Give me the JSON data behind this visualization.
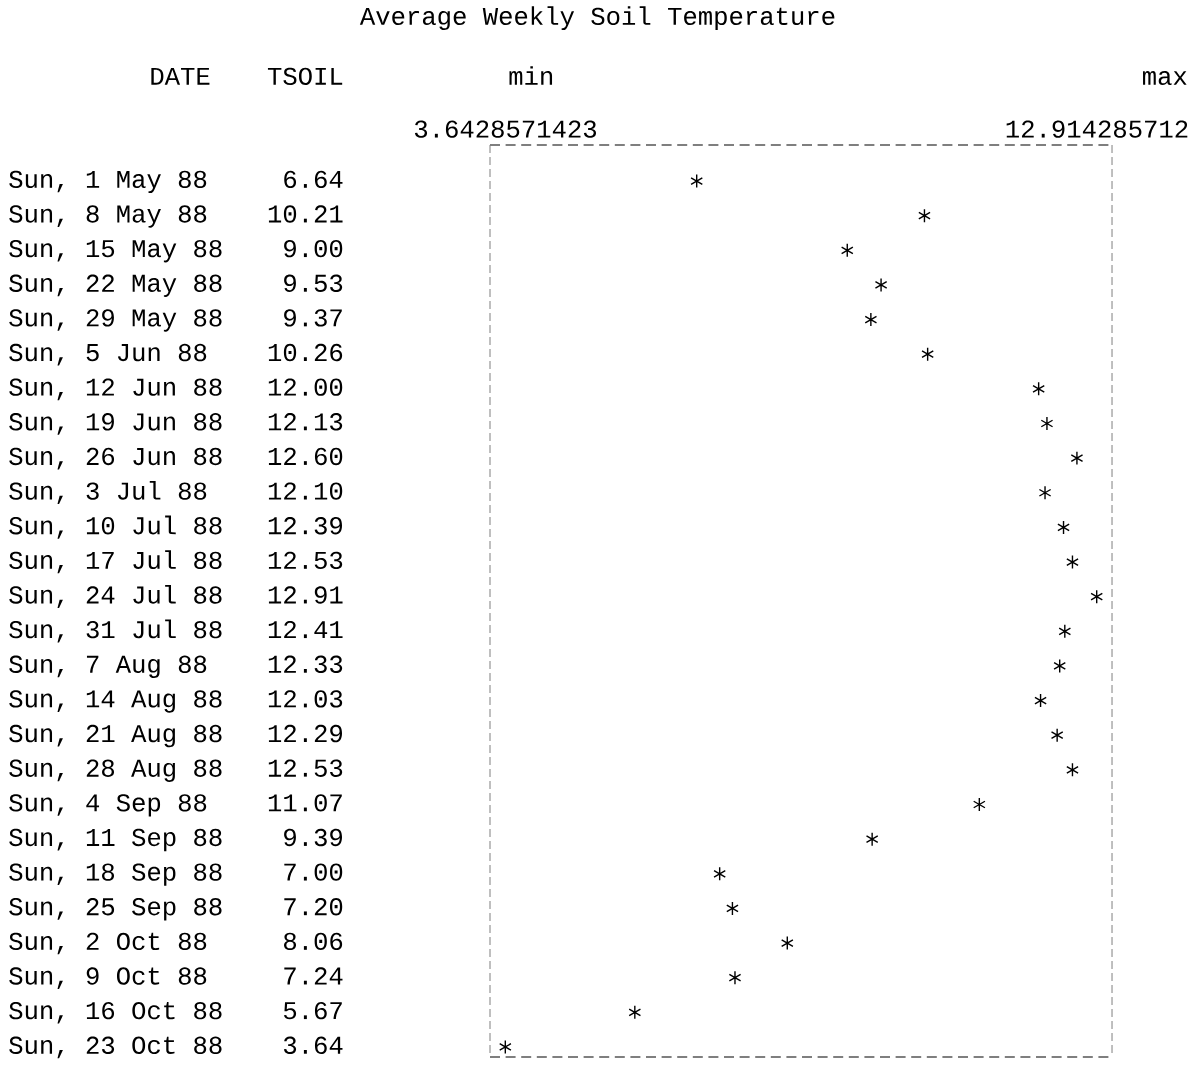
{
  "chart_data": {
    "type": "scatter",
    "orientation": "horizontal",
    "title": "Average Weekly Soil Temperature",
    "ylabel": "DATE",
    "xlabel": "TSOIL",
    "categories": [
      "Sun, 1 May 88",
      "Sun, 8 May 88",
      "Sun, 15 May 88",
      "Sun, 22 May 88",
      "Sun, 29 May 88",
      "Sun, 5 Jun 88",
      "Sun, 12 Jun 88",
      "Sun, 19 Jun 88",
      "Sun, 26 Jun 88",
      "Sun, 3 Jul 88",
      "Sun, 10 Jul 88",
      "Sun, 17 Jul 88",
      "Sun, 24 Jul 88",
      "Sun, 31 Jul 88",
      "Sun, 7 Aug 88",
      "Sun, 14 Aug 88",
      "Sun, 21 Aug 88",
      "Sun, 28 Aug 88",
      "Sun, 4 Sep 88",
      "Sun, 11 Sep 88",
      "Sun, 18 Sep 88",
      "Sun, 25 Sep 88",
      "Sun, 2 Oct 88",
      "Sun, 9 Oct 88",
      "Sun, 16 Oct 88",
      "Sun, 23 Oct 88"
    ],
    "values": [
      6.64,
      10.21,
      9.0,
      9.53,
      9.37,
      10.26,
      12.0,
      12.13,
      12.6,
      12.1,
      12.39,
      12.53,
      12.91,
      12.41,
      12.33,
      12.03,
      12.29,
      12.53,
      11.07,
      9.39,
      7.0,
      7.2,
      8.06,
      7.24,
      5.67,
      3.64
    ],
    "value_labels": [
      "6.64",
      "10.21",
      "9.00",
      "9.53",
      "9.37",
      "10.26",
      "12.00",
      "12.13",
      "12.60",
      "12.10",
      "12.39",
      "12.53",
      "12.91",
      "12.41",
      "12.33",
      "12.03",
      "12.29",
      "12.53",
      "11.07",
      "9.39",
      "7.00",
      "7.20",
      "8.06",
      "7.24",
      "5.67",
      "3.64"
    ],
    "color": "#000000",
    "marker": "cross",
    "xlim": [
      3.4,
      13.15
    ],
    "x2lim": [
      3.4,
      13.15
    ],
    "x2ticks": [
      {
        "value": 3.6428571423,
        "label": "3.6428571423"
      },
      {
        "value": 12.914285712,
        "label": "12.914285712"
      }
    ],
    "annotations": [
      "min",
      "max"
    ]
  }
}
